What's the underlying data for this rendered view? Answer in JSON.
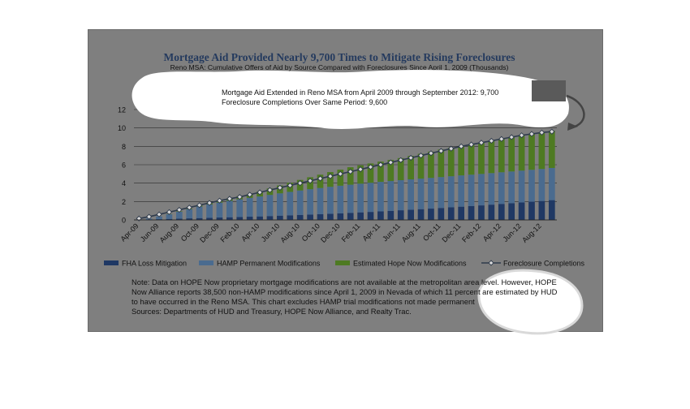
{
  "chart_data": {
    "type": "bar",
    "title": "Mortgage Aid Provided Nearly 9,700 Times to Mitigate Rising Foreclosures",
    "subtitle": "Reno MSA: Cumulative Offers of Aid by Source Compared with Foreclosures Since April 1, 2009 (Thousands)",
    "annotation_line1": "Mortgage Aid Extended in Reno MSA from April 2009 through September 2012: 9,700",
    "annotation_line2": "Foreclosure Completions Over Same Period: 9,600",
    "ylim": [
      0,
      12
    ],
    "yticks": [
      0,
      2,
      4,
      6,
      8,
      10,
      12
    ],
    "grid": true,
    "legend_position": "bottom",
    "xtick_labels": [
      "Apr-09",
      "Jun-09",
      "Aug-09",
      "Oct-09",
      "Dec-09",
      "Feb-10",
      "Apr-10",
      "Jun-10",
      "Aug-10",
      "Oct-10",
      "Dec-10",
      "Feb-11",
      "Apr-11",
      "Jun-11",
      "Aug-11",
      "Oct-11",
      "Dec-11",
      "Feb-12",
      "Apr-12",
      "Jun-12",
      "Aug-12"
    ],
    "n_periods": 42,
    "series": [
      {
        "name": "FHA Loss Mitigation",
        "kind": "bar",
        "color": "#1f3864",
        "values": [
          0.02,
          0.05,
          0.08,
          0.11,
          0.14,
          0.17,
          0.2,
          0.23,
          0.26,
          0.29,
          0.32,
          0.35,
          0.38,
          0.42,
          0.46,
          0.5,
          0.54,
          0.58,
          0.62,
          0.67,
          0.72,
          0.77,
          0.82,
          0.87,
          0.93,
          0.99,
          1.05,
          1.11,
          1.17,
          1.23,
          1.3,
          1.37,
          1.44,
          1.51,
          1.58,
          1.66,
          1.74,
          1.82,
          1.9,
          1.98,
          2.06,
          2.15
        ]
      },
      {
        "name": "HAMP Permanent Modifications",
        "kind": "bar",
        "color": "#4a6b8f",
        "values": [
          0.0,
          0.1,
          0.3,
          0.5,
          0.75,
          1.0,
          1.25,
          1.45,
          1.62,
          1.78,
          1.92,
          2.05,
          2.17,
          2.3,
          2.43,
          2.55,
          2.66,
          2.76,
          2.85,
          2.93,
          3.0,
          3.06,
          3.12,
          3.17,
          3.21,
          3.24,
          3.27,
          3.3,
          3.32,
          3.34,
          3.36,
          3.38,
          3.4,
          3.41,
          3.42,
          3.43,
          3.44,
          3.45,
          3.46,
          3.47,
          3.48,
          3.5
        ]
      },
      {
        "name": "Estimated Hope Now Modifications",
        "kind": "bar",
        "color": "#4e7a22",
        "values": [
          0.0,
          0.0,
          0.0,
          0.02,
          0.05,
          0.08,
          0.12,
          0.17,
          0.22,
          0.28,
          0.34,
          0.4,
          0.55,
          0.7,
          0.85,
          1.0,
          1.15,
          1.3,
          1.45,
          1.6,
          1.75,
          1.9,
          2.0,
          2.1,
          2.2,
          2.3,
          2.4,
          2.55,
          2.7,
          2.85,
          3.0,
          3.1,
          3.2,
          3.3,
          3.4,
          3.5,
          3.6,
          3.7,
          3.8,
          3.88,
          3.95,
          4.05
        ]
      },
      {
        "name": "Foreclosure Completions",
        "kind": "line",
        "color": "#2f3b4c",
        "values": [
          0.15,
          0.35,
          0.6,
          0.85,
          1.1,
          1.35,
          1.6,
          1.85,
          2.1,
          2.3,
          2.5,
          2.75,
          3.0,
          3.25,
          3.5,
          3.75,
          4.0,
          4.25,
          4.5,
          4.75,
          5.0,
          5.25,
          5.5,
          5.75,
          6.0,
          6.25,
          6.5,
          6.75,
          7.0,
          7.25,
          7.5,
          7.75,
          8.0,
          8.2,
          8.4,
          8.6,
          8.8,
          9.0,
          9.2,
          9.35,
          9.5,
          9.6
        ]
      }
    ]
  },
  "notes": {
    "line1": "Note: Data on HOPE Now proprietary mortgage modifications are not available at the metropolitan area level. However, HOPE",
    "line2": "Now Alliance reports 38,500 non-HAMP modifications since April 1, 2009 in Nevada of which 11 percent are estimated by HUD",
    "line3": "to have occurred in the Reno MSA. This chart excludes HAMP trial modifications not made permanent",
    "sources": "Sources: Departments of HUD and Treasury, HOPE Now Alliance, and Realty Trac."
  },
  "colors": {
    "background": "#7f7f7f",
    "page": "#ffffff",
    "gridline": "#2a2a2a",
    "text": "#111111",
    "title": "#243a5e"
  }
}
